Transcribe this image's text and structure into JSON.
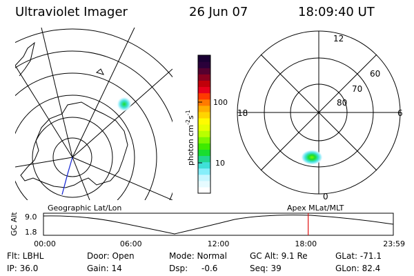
{
  "header": {
    "title": "Ultraviolet Imager",
    "date": "26 Jun 07",
    "time": "18:09:40 UT"
  },
  "geo_map": {
    "label": "Geographic Lat/Lon"
  },
  "colorbar": {
    "unit_label_prefix": "photon cm",
    "unit_exp1": "-2",
    "unit_mid": "s",
    "unit_exp2": "-1",
    "tick_high": "100",
    "tick_low": "10",
    "colors": [
      "#1a0033",
      "#2a003a",
      "#55002f",
      "#8a001f",
      "#c1000a",
      "#e8001c",
      "#ff3a00",
      "#ff7a00",
      "#ffae00",
      "#ffd400",
      "#fffb00",
      "#e7ff00",
      "#b9ff00",
      "#7cf700",
      "#3fea00",
      "#19dd30",
      "#22d690",
      "#3fe0d8",
      "#86eefa",
      "#c8f6ff",
      "#e6fbff",
      "#ffffff"
    ]
  },
  "apex_map": {
    "label": "Apex MLat/MLT",
    "mlt_top": "12",
    "mlt_left": "18",
    "mlt_right": "6",
    "mlt_bottom": "0",
    "lat_60": "60",
    "lat_70": "70",
    "lat_80": "80"
  },
  "orbit_plot": {
    "ylabel": "GC Alt",
    "y_max": "9.0",
    "y_min": "1.8",
    "x_ticks": [
      "00:00",
      "06:00",
      "12:00",
      "18:00",
      "23:59"
    ],
    "current_time_hours": 18.16
  },
  "info": {
    "flt": "Flt: LBHL",
    "ip": "IP: 36.0",
    "door": "Door: Open",
    "gain": "Gain: 14",
    "mode": "Mode: Normal",
    "dsp_label": "Dsp:",
    "dsp_value": "-0.6",
    "gc_alt": "GC Alt: 9.1 Re",
    "seq": "Seq: 39",
    "glat": "GLat: -71.1",
    "glon": "GLon: 82.4"
  }
}
